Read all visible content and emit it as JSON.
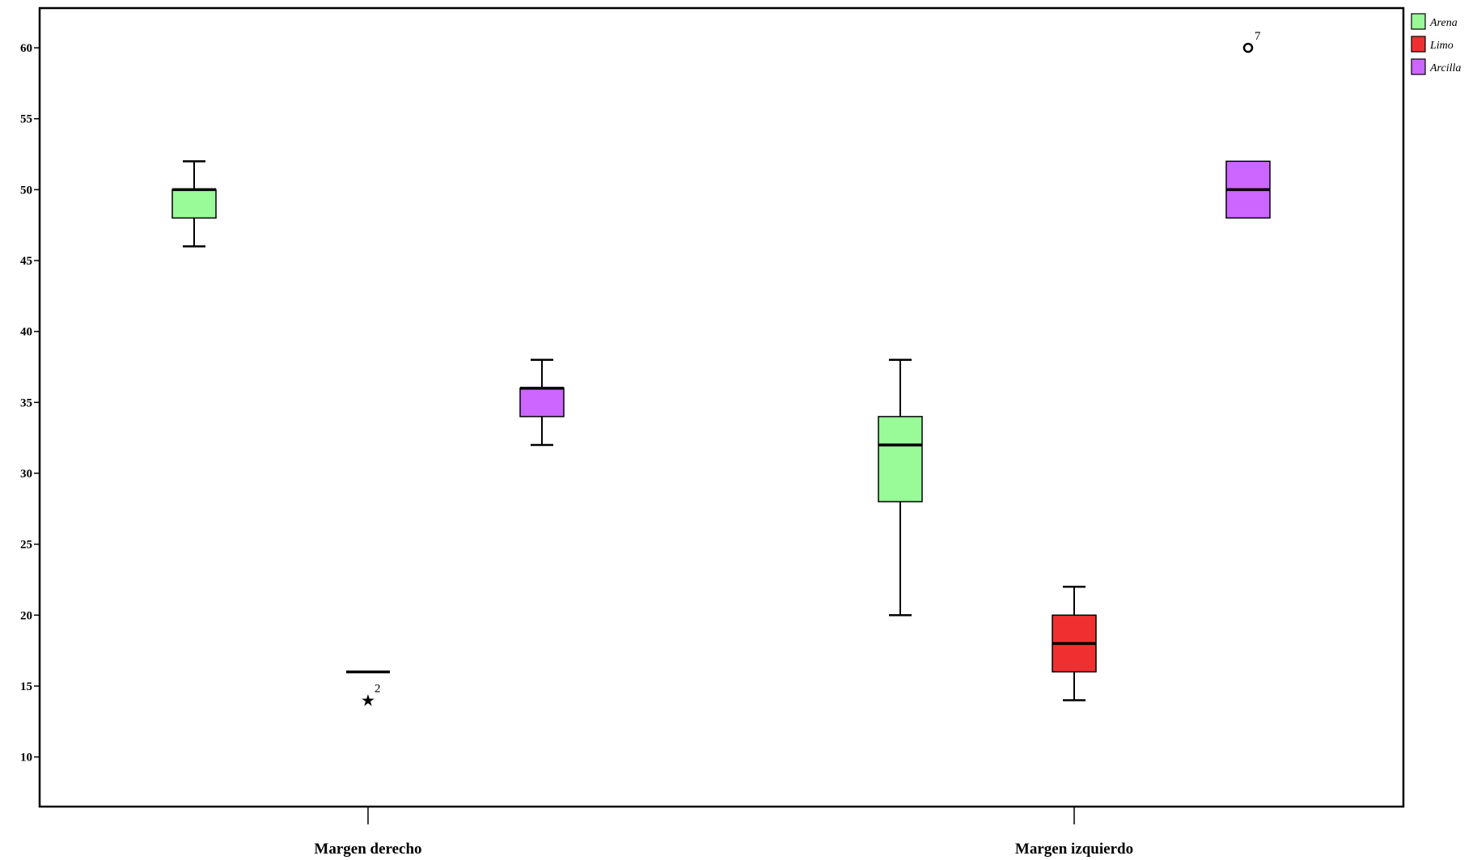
{
  "chart_data": {
    "type": "boxplot",
    "title": "",
    "xlabel": "",
    "ylabel": "",
    "ylim": [
      6.5,
      62.8
    ],
    "yticks": [
      10,
      15,
      20,
      25,
      30,
      35,
      40,
      45,
      50,
      55,
      60
    ],
    "categories": [
      "Margen derecho",
      "Margen izquierdo"
    ],
    "legend_position": "top-right",
    "series": [
      {
        "name": "Arena",
        "color": "#98fb98",
        "boxes": [
          {
            "category": "Margen derecho",
            "min": 46,
            "q1": 48,
            "median": 50,
            "q3": 50,
            "max": 52
          },
          {
            "category": "Margen izquierdo",
            "min": 20,
            "q1": 28,
            "median": 32,
            "q3": 34,
            "max": 38
          }
        ]
      },
      {
        "name": "Limo",
        "color": "#f03030",
        "boxes": [
          {
            "category": "Margen derecho",
            "min": 16,
            "q1": 16,
            "median": 16,
            "q3": 16,
            "max": 16,
            "outliers": [
              {
                "value": 14,
                "label": "2",
                "marker": "star"
              }
            ]
          },
          {
            "category": "Margen izquierdo",
            "min": 14,
            "q1": 16,
            "median": 18,
            "q3": 20,
            "max": 22
          }
        ]
      },
      {
        "name": "Arcilla",
        "color": "#cc66ff",
        "boxes": [
          {
            "category": "Margen derecho",
            "min": 32,
            "q1": 34,
            "median": 36,
            "q3": 36,
            "max": 38
          },
          {
            "category": "Margen izquierdo",
            "min": 48,
            "q1": 48,
            "median": 50,
            "q3": 52,
            "max": 52,
            "outliers": [
              {
                "value": 60,
                "label": "7",
                "marker": "circle"
              }
            ]
          }
        ]
      }
    ]
  }
}
